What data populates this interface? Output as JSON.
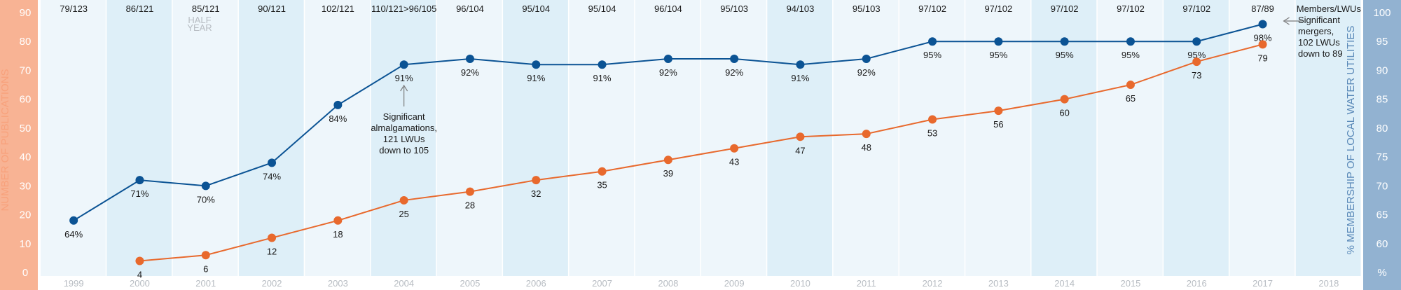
{
  "chart_data": {
    "type": "line",
    "left_axis": {
      "label": "NUMBER OF PUBLICATIONS",
      "range": [
        0,
        90
      ],
      "ticks": [
        "0",
        "10",
        "20",
        "30",
        "40",
        "50",
        "60",
        "70",
        "80",
        "90"
      ],
      "color": "#f8b394"
    },
    "right_axis": {
      "label": "% MEMBERSHIP OF LOCAL WATER UTILITIES",
      "range": [
        55,
        100
      ],
      "ticks": [
        "%",
        "60",
        "65",
        "70",
        "75",
        "80",
        "85",
        "90",
        "95",
        "100"
      ],
      "color": "#92b2d1"
    },
    "x_axis": {
      "categories": [
        "1999",
        "2000",
        "2001",
        "2002",
        "2003",
        "2004",
        "2005",
        "2006",
        "2007",
        "2008",
        "2009",
        "2010",
        "2011",
        "2012",
        "2013",
        "2014",
        "2015",
        "2016",
        "2017",
        "2018"
      ]
    },
    "header": {
      "ratios": [
        "79/123",
        "86/121",
        "85/121",
        "90/121",
        "102/121",
        "110/121>96/105",
        "96/104",
        "95/104",
        "95/104",
        "96/104",
        "95/103",
        "94/103",
        "95/103",
        "97/102",
        "97/102",
        "97/102",
        "97/102",
        "97/102",
        "87/89",
        "Members/LWUs"
      ],
      "half_year_note": "HALF YEAR"
    },
    "series": [
      {
        "name": "Membership",
        "axis": "right",
        "color": "#0b5394",
        "x": [
          "1999",
          "2000",
          "2001",
          "2002",
          "2003",
          "2004",
          "2005",
          "2006",
          "2007",
          "2008",
          "2009",
          "2010",
          "2011",
          "2012",
          "2013",
          "2014",
          "2015",
          "2016",
          "2017"
        ],
        "values": [
          64,
          71,
          70,
          74,
          84,
          91,
          92,
          91,
          91,
          92,
          92,
          91,
          92,
          95,
          95,
          95,
          95,
          95,
          98
        ],
        "labels": [
          "64%",
          "71%",
          "70%",
          "74%",
          "84%",
          "91%",
          "92%",
          "91%",
          "91%",
          "92%",
          "92%",
          "91%",
          "92%",
          "95%",
          "95%",
          "95%",
          "95%",
          "95%",
          "98%"
        ]
      },
      {
        "name": "Publications",
        "axis": "left",
        "color": "#e8692d",
        "x": [
          "2000",
          "2001",
          "2002",
          "2003",
          "2004",
          "2005",
          "2006",
          "2007",
          "2008",
          "2009",
          "2010",
          "2011",
          "2012",
          "2013",
          "2014",
          "2015",
          "2016",
          "2017"
        ],
        "values": [
          4,
          6,
          12,
          18,
          25,
          28,
          32,
          35,
          39,
          43,
          47,
          48,
          53,
          56,
          60,
          65,
          73,
          79
        ],
        "labels": [
          "4",
          "6",
          "12",
          "18",
          "25",
          "28",
          "32",
          "35",
          "39",
          "43",
          "47",
          "48",
          "53",
          "56",
          "60",
          "65",
          "73",
          "79"
        ]
      }
    ],
    "annotations": [
      {
        "year": "2004",
        "lines": [
          "Significant",
          "almalgamations,",
          "121 LWUs",
          "down to 105"
        ]
      },
      {
        "year": "2017",
        "lines": [
          "Significant",
          "mergers,",
          "102 LWUs",
          "down to 89"
        ]
      }
    ],
    "band_colors": {
      "light": "#eef6fb",
      "dark": "#deeff8",
      "year_text": "#b7bcc2"
    },
    "dark_band_years": [
      "2000",
      "2002",
      "2004",
      "2006",
      "2010",
      "2014",
      "2016",
      "2018"
    ]
  }
}
